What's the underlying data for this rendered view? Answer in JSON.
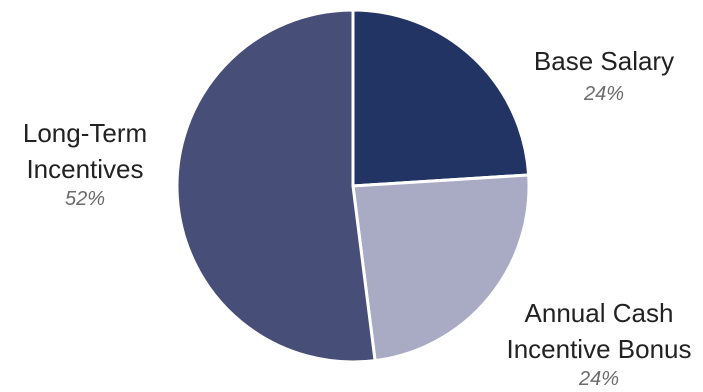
{
  "chart_data": {
    "type": "pie",
    "title": "",
    "slices": [
      {
        "label": [
          "Base Salary"
        ],
        "value": 24,
        "value_label": "24%",
        "color": "#223464"
      },
      {
        "label": [
          "Annual Cash",
          "Incentive Bonus"
        ],
        "value": 24,
        "value_label": "24%",
        "color": "#a9abc4"
      },
      {
        "label": [
          "Long-Term",
          "Incentives"
        ],
        "value": 52,
        "value_label": "52%",
        "color": "#474e78"
      }
    ],
    "start_angle_deg": 0,
    "direction": "clockwise",
    "slice_border_color": "#ffffff",
    "legend": "none"
  }
}
